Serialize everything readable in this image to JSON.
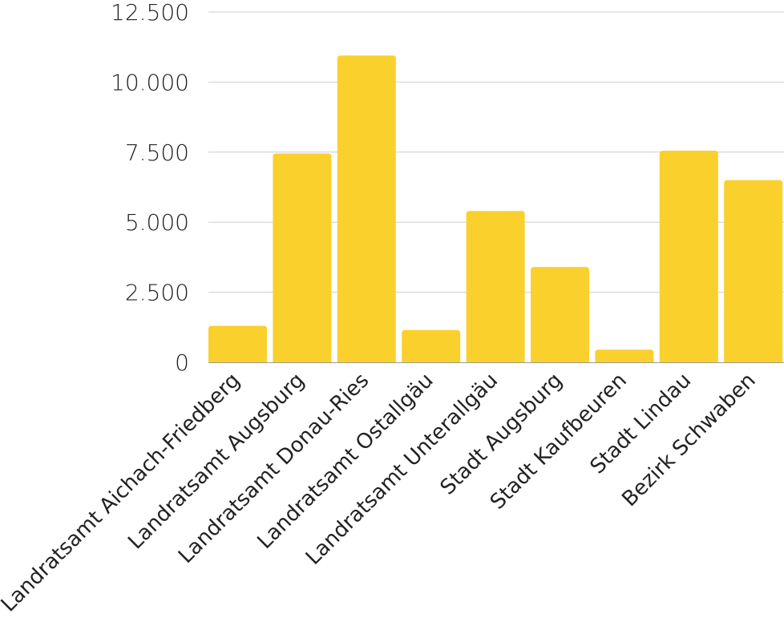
{
  "chart_data": {
    "type": "bar",
    "categories": [
      "Landratsamt Aichach-Friedberg",
      "Landratsamt Augsburg",
      "Landratsamt Donau-Ries",
      "Landratsamt Ostallgäu",
      "Landratsamt Unterallgäu",
      "Stadt Augsburg",
      "Stadt Kaufbeuren",
      "Stadt Lindau",
      "Bezirk Schwaben"
    ],
    "values": [
      1300,
      7450,
      10950,
      1150,
      5400,
      3400,
      450,
      7550,
      6500
    ],
    "ylim": [
      0,
      12500
    ],
    "yticks": [
      0,
      2500,
      5000,
      7500,
      10000,
      12500
    ],
    "ytick_labels": [
      "0",
      "2.500",
      "5.000",
      "7.500",
      "10.000",
      "12.500"
    ],
    "bar_color": "#FAD02C",
    "grid": true,
    "legend": "none",
    "title": "",
    "xlabel": "",
    "ylabel": ""
  }
}
